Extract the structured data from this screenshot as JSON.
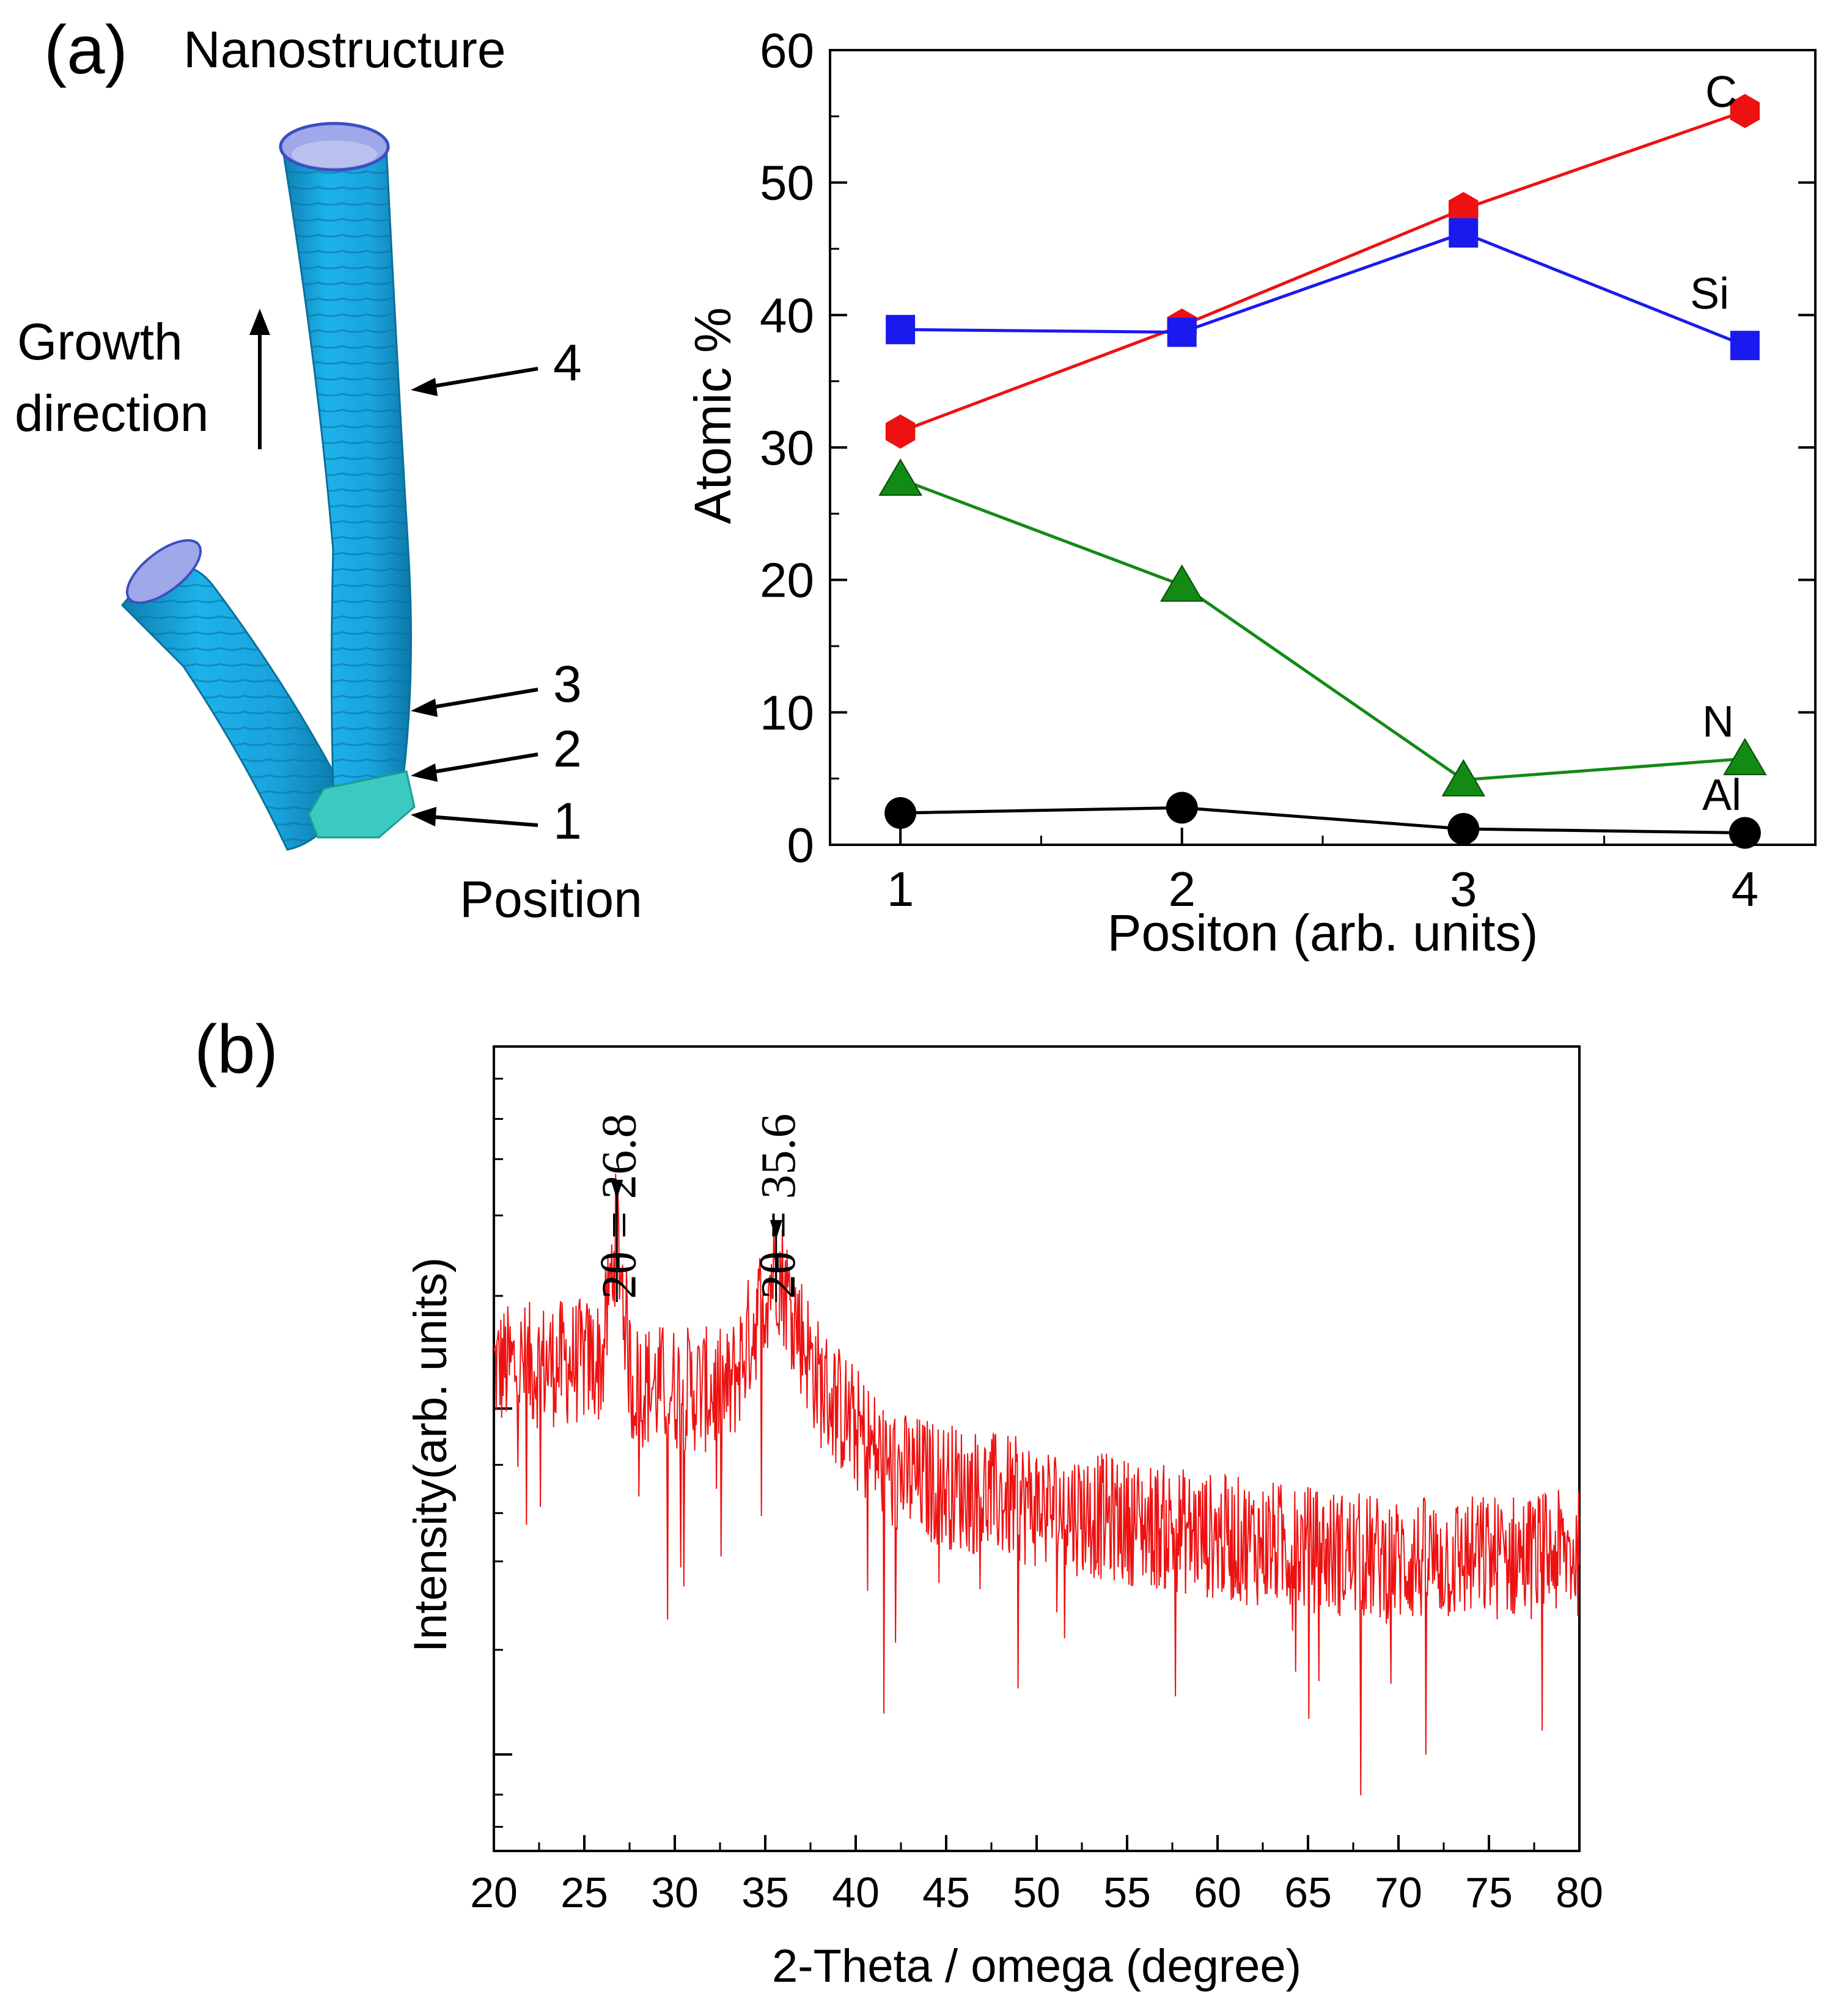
{
  "panel_a": {
    "label": "(a)",
    "illustration": {
      "title": "Nanostructure",
      "growth_label_line1": "Growth",
      "growth_label_line2": "direction",
      "position_label": "Position",
      "markers": [
        "4",
        "3",
        "2",
        "1"
      ],
      "colors": {
        "tube": "#1aa3dd",
        "tube_dark": "#0f86b8",
        "bore": "#9fa8e8",
        "base": "#3cc9c0"
      }
    }
  },
  "panel_b": {
    "label": "(b)",
    "peak_labels": [
      "2θ = 26.8",
      "2θ = 35.6"
    ]
  },
  "chart_data": [
    {
      "type": "line",
      "title": "",
      "xlabel": "Positon (arb. units)",
      "ylabel": "Atomic %",
      "x": [
        1,
        2,
        3,
        4
      ],
      "xticks": [
        "1",
        "2",
        "3",
        "4"
      ],
      "xlim": [
        0.75,
        4.25
      ],
      "ylim": [
        0,
        60
      ],
      "yticks": [
        "0",
        "10",
        "20",
        "30",
        "40",
        "50",
        "60"
      ],
      "grid": false,
      "series": [
        {
          "name": "C",
          "values": [
            31.2,
            39.2,
            48.0,
            55.4
          ],
          "color": "#ee1111",
          "marker": "hexagon"
        },
        {
          "name": "Si",
          "values": [
            38.9,
            38.7,
            46.2,
            37.7
          ],
          "color": "#1a1aee",
          "marker": "square"
        },
        {
          "name": "N",
          "values": [
            27.6,
            19.6,
            4.9,
            6.5
          ],
          "color": "#138a13",
          "marker": "triangle"
        },
        {
          "name": "Al",
          "values": [
            2.4,
            2.8,
            1.2,
            0.9
          ],
          "color": "#000000",
          "marker": "circle"
        }
      ]
    },
    {
      "type": "line",
      "title": "",
      "xlabel": "2-Theta / omega (degree)",
      "ylabel": "Intensity(arb. units)",
      "xlim": [
        20,
        80
      ],
      "xticks": [
        "20",
        "25",
        "30",
        "35",
        "40",
        "45",
        "50",
        "55",
        "60",
        "65",
        "70",
        "75",
        "80"
      ],
      "y_tick_labels_shown": false,
      "grid": false,
      "color": "#ee1111",
      "peaks": [
        {
          "x": 26.8,
          "label": "2θ = 26.8"
        },
        {
          "x": 35.6,
          "label": "2θ = 35.6"
        }
      ],
      "trend": [
        {
          "x": 20,
          "y": 0.6
        },
        {
          "x": 26,
          "y": 0.61
        },
        {
          "x": 26.8,
          "y": 0.78
        },
        {
          "x": 27.6,
          "y": 0.58
        },
        {
          "x": 33,
          "y": 0.57
        },
        {
          "x": 35.6,
          "y": 0.73
        },
        {
          "x": 38,
          "y": 0.58
        },
        {
          "x": 42,
          "y": 0.47
        },
        {
          "x": 50,
          "y": 0.43
        },
        {
          "x": 60,
          "y": 0.39
        },
        {
          "x": 70,
          "y": 0.36
        },
        {
          "x": 80,
          "y": 0.37
        }
      ],
      "noise_amplitude": 0.05
    }
  ]
}
